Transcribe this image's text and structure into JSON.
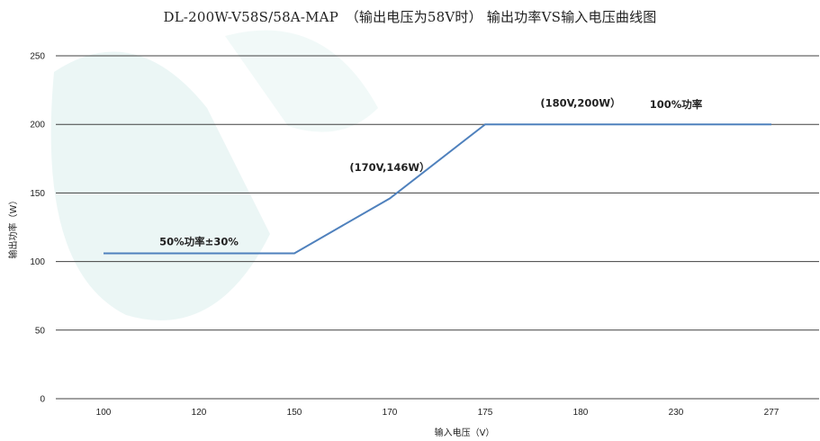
{
  "chart_data": {
    "type": "line",
    "title": "DL-200W-V58S/58A-MAP　（输出电压为58V时） 输出功率VS输入电压曲线图",
    "xlabel": "输入电压（V）",
    "ylabel": "输出功率（W）",
    "categories": [
      "100",
      "120",
      "150",
      "170",
      "175",
      "180",
      "230",
      "277"
    ],
    "values": [
      106,
      106,
      106,
      146,
      200,
      200,
      200,
      200
    ],
    "ylim": [
      0,
      250
    ],
    "yticks": [
      "0",
      "50",
      "100",
      "150",
      "200",
      "250"
    ],
    "grid": true,
    "line_color": "#4f81bd",
    "annotations": [
      {
        "text": "50%功率±30%",
        "x": "120",
        "y": 112
      },
      {
        "text": "(170V,146W）",
        "x": "170",
        "y": 166
      },
      {
        "text": "(180V,200W）",
        "x": "180",
        "y": 213
      },
      {
        "text": "100%功率",
        "x": "230",
        "y": 212
      }
    ]
  }
}
